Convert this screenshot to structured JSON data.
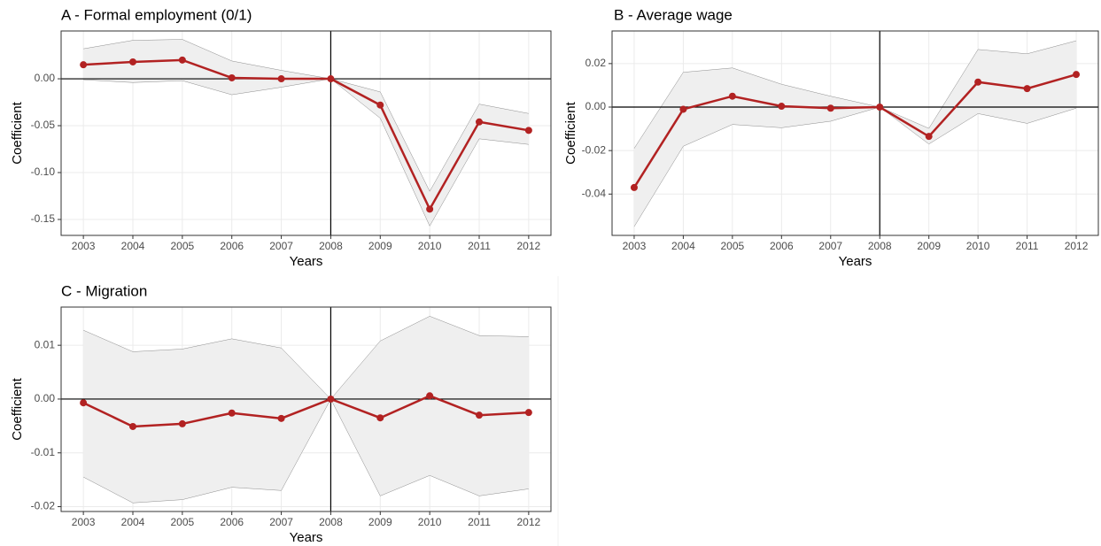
{
  "chart_data": [
    {
      "type": "line",
      "title": "A - Formal employment (0/1)",
      "x_label": "Years",
      "y_label": "Coefficient",
      "categories": [
        "2003",
        "2004",
        "2005",
        "2006",
        "2007",
        "2008",
        "2009",
        "2010",
        "2011",
        "2012"
      ],
      "values": [
        0.015,
        0.018,
        0.02,
        0.001,
        0.0,
        0.0,
        -0.028,
        -0.139,
        -0.046,
        -0.055
      ],
      "upper": [
        0.032,
        0.041,
        0.042,
        0.019,
        0.009,
        0.0,
        -0.014,
        -0.12,
        -0.027,
        -0.037
      ],
      "lower": [
        -0.001,
        -0.004,
        -0.002,
        -0.017,
        -0.009,
        0.0,
        -0.042,
        -0.157,
        -0.064,
        -0.07
      ],
      "color": "#b22222",
      "band_color": "#efefef",
      "ylim": [
        -0.167,
        0.051
      ],
      "yticks": [
        {
          "value": 0,
          "label": "0.00"
        },
        -0.05,
        {
          "value": -0.1,
          "label": "-0.10"
        },
        -0.15
      ],
      "hline": 0,
      "vline": "2008",
      "grid": true
    },
    {
      "type": "line",
      "title": "B - Average wage",
      "x_label": "Years",
      "y_label": "Coefficient",
      "categories": [
        "2003",
        "2004",
        "2005",
        "2006",
        "2007",
        "2008",
        "2009",
        "2010",
        "2011",
        "2012"
      ],
      "values": [
        -0.037,
        -0.001,
        0.005,
        0.0004,
        -0.0005,
        0.0,
        -0.0135,
        0.0115,
        0.0085,
        0.015
      ],
      "upper": [
        -0.019,
        0.016,
        0.018,
        0.0105,
        0.005,
        0.0,
        -0.0098,
        0.0265,
        0.0245,
        0.0305
      ],
      "lower": [
        -0.055,
        -0.018,
        -0.008,
        -0.0095,
        -0.0065,
        0.0,
        -0.017,
        -0.003,
        -0.0075,
        -0.0005
      ],
      "color": "#b22222",
      "band_color": "#efefef",
      "ylim": [
        -0.059,
        0.035
      ],
      "yticks": [
        0.02,
        {
          "value": 0,
          "label": "0.00"
        },
        -0.02,
        -0.04
      ],
      "hline": 0,
      "vline": "2008",
      "grid": true
    },
    {
      "type": "line",
      "title": "C - Migration",
      "x_label": "Years",
      "y_label": "Coefficient",
      "categories": [
        "2003",
        "2004",
        "2005",
        "2006",
        "2007",
        "2008",
        "2009",
        "2010",
        "2011",
        "2012"
      ],
      "values": [
        -0.0007,
        -0.0051,
        -0.0046,
        -0.0026,
        -0.0036,
        0.0,
        -0.0035,
        0.0006,
        -0.003,
        -0.0025
      ],
      "upper": [
        0.0128,
        0.0088,
        0.0093,
        0.0112,
        0.0095,
        0.0,
        0.0108,
        0.0154,
        0.0118,
        0.0116
      ],
      "lower": [
        -0.0145,
        -0.0193,
        -0.0187,
        -0.0164,
        -0.017,
        0.0,
        -0.018,
        -0.0142,
        -0.018,
        -0.0167
      ],
      "color": "#b22222",
      "band_color": "#efefef",
      "ylim": [
        -0.0209,
        0.0171
      ],
      "yticks": [
        0.01,
        {
          "value": 0,
          "label": "0.00"
        },
        -0.01,
        -0.02
      ],
      "hline": 0,
      "vline": "2008",
      "grid": true
    }
  ]
}
